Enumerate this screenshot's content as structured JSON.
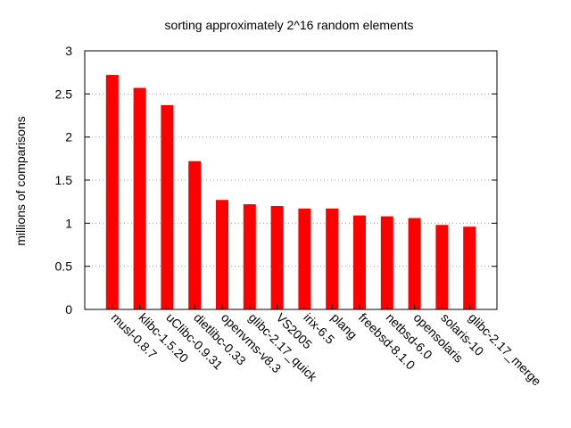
{
  "chart_data": {
    "type": "bar",
    "title": "sorting approximately 2^16 random elements",
    "xlabel": "",
    "ylabel": "millions of  comparisons",
    "ylim": [
      0,
      3
    ],
    "yticks": [
      0,
      0.5,
      1,
      1.5,
      2,
      2.5,
      3
    ],
    "ytick_labels": [
      "0",
      "0.5",
      "1",
      "1.5",
      "2",
      "2.5",
      "3"
    ],
    "grid": "horizontal dotted",
    "categories": [
      "musl-0.8.7",
      "klibc-1.5.20",
      "uClibc-0.9.31",
      "dietlibc-0.33",
      "openvms-v8.3",
      "glibc-2.17_quick",
      "VS2005",
      "irix-6.5",
      "plang",
      "freebsd-8.1.0",
      "netbsd-6.0",
      "opensolaris",
      "solaris-10",
      "glibc-2.17_merge"
    ],
    "series": [
      {
        "color": "#ff0000",
        "values": [
          2.72,
          2.57,
          2.37,
          1.72,
          1.27,
          1.22,
          1.2,
          1.17,
          1.17,
          1.09,
          1.08,
          1.06,
          0.98,
          0.96
        ]
      }
    ]
  }
}
